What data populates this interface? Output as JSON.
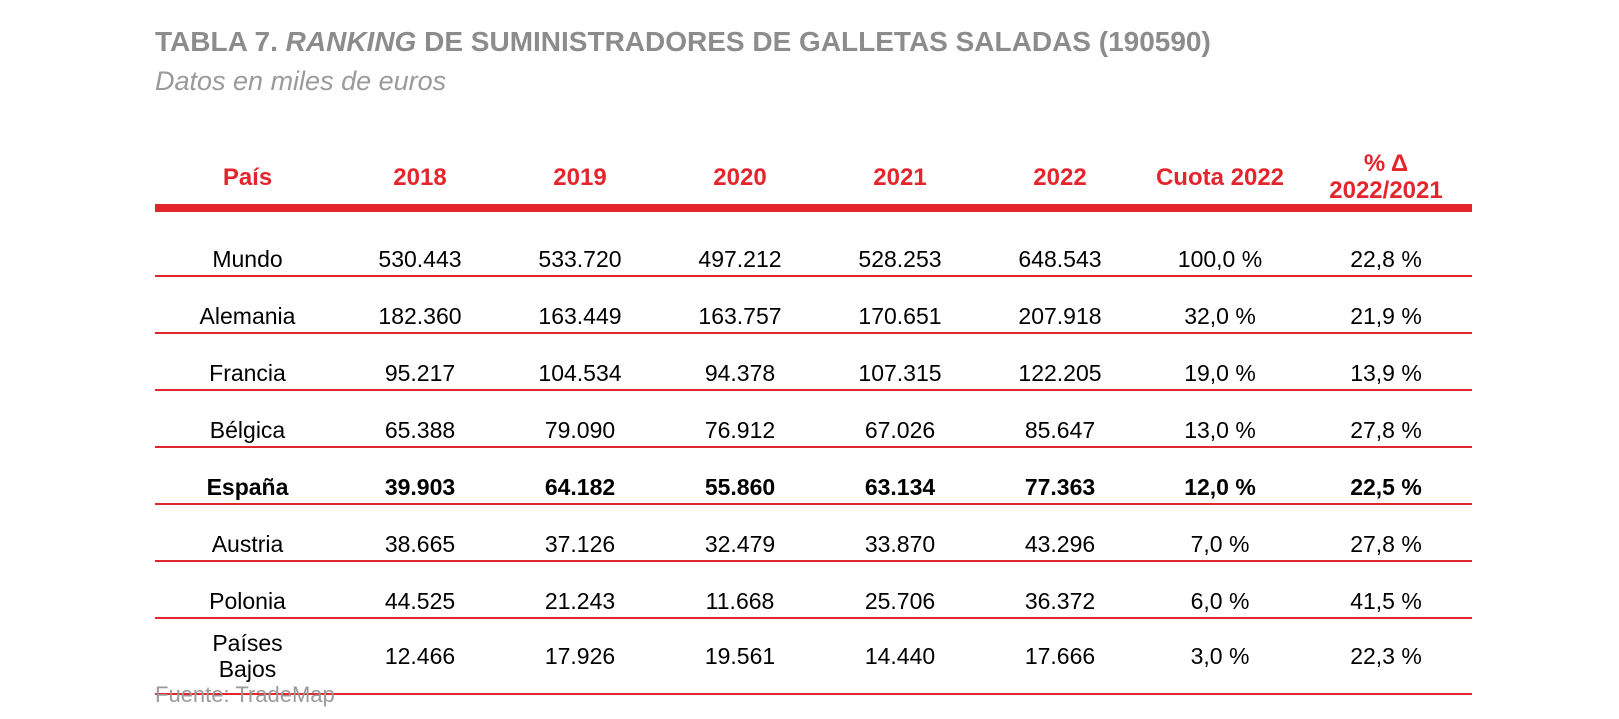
{
  "title": {
    "prefix": "TABLA 7.",
    "italic": "RANKING",
    "suffix": "DE SUMINISTRADORES DE GALLETAS SALADAS  (190590)"
  },
  "subtitle": "Datos en miles de euros",
  "table": {
    "headers": {
      "pais": "País",
      "y2018": "2018",
      "y2019": "2019",
      "y2020": "2020",
      "y2021": "2021",
      "y2022": "2022",
      "cuota": "Cuota 2022",
      "delta_line1": "% Δ",
      "delta_line2": "2022/2021"
    },
    "rows": [
      {
        "pais": "Mundo",
        "y2018": "530.443",
        "y2019": "533.720",
        "y2020": "497.212",
        "y2021": "528.253",
        "y2022": "648.543",
        "cuota": "100,0 %",
        "delta": "22,8 %"
      },
      {
        "pais": "Alemania",
        "y2018": "182.360",
        "y2019": "163.449",
        "y2020": "163.757",
        "y2021": "170.651",
        "y2022": "207.918",
        "cuota": "32,0 %",
        "delta": "21,9 %"
      },
      {
        "pais": "Francia",
        "y2018": "95.217",
        "y2019": "104.534",
        "y2020": "94.378",
        "y2021": "107.315",
        "y2022": "122.205",
        "cuota": "19,0 %",
        "delta": "13,9 %"
      },
      {
        "pais": "Bélgica",
        "y2018": "65.388",
        "y2019": "79.090",
        "y2020": "76.912",
        "y2021": "67.026",
        "y2022": "85.647",
        "cuota": "13,0 %",
        "delta": "27,8 %"
      },
      {
        "pais": "España",
        "y2018": "39.903",
        "y2019": "64.182",
        "y2020": "55.860",
        "y2021": "63.134",
        "y2022": "77.363",
        "cuota": "12,0 %",
        "delta": "22,5 %"
      },
      {
        "pais": "Austria",
        "y2018": "38.665",
        "y2019": "37.126",
        "y2020": "32.479",
        "y2021": "33.870",
        "y2022": "43.296",
        "cuota": "7,0 %",
        "delta": "27,8 %"
      },
      {
        "pais": "Polonia",
        "y2018": "44.525",
        "y2019": "21.243",
        "y2020": "11.668",
        "y2021": "25.706",
        "y2022": "36.372",
        "cuota": "6,0 %",
        "delta": "41,5 %"
      },
      {
        "pais_line1": "Países",
        "pais_line2": "Bajos",
        "y2018": "12.466",
        "y2019": "17.926",
        "y2020": "19.561",
        "y2021": "14.440",
        "y2022": "17.666",
        "cuota": "3,0 %",
        "delta": "22,3 %"
      }
    ]
  },
  "source": "Fuente: TradeMap",
  "colors": {
    "accent": "#e3262d",
    "title_gray": "#8c8c8c"
  }
}
